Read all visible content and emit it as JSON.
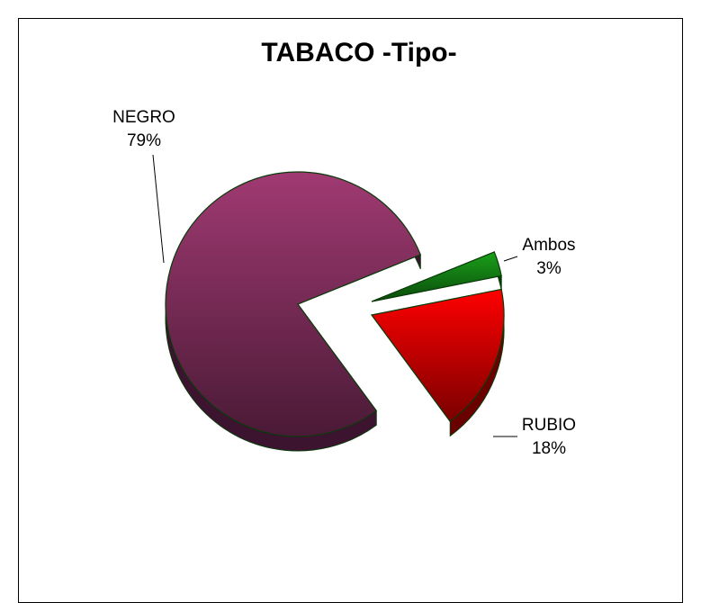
{
  "chart_data": {
    "type": "pie",
    "title": "TABACO -Tipo-",
    "slices": [
      {
        "name": "Ambos",
        "value": 3,
        "label_pct": "3%",
        "color": "#0a7a0a"
      },
      {
        "name": "RUBIO",
        "value": 18,
        "label_pct": "18%",
        "color": "#ff0000"
      },
      {
        "name": "NEGRO",
        "value": 79,
        "label_pct": "79%",
        "color": "#8a3566"
      }
    ],
    "style": "3d-exploded",
    "legend": "none",
    "data_labels": "category-name and percent"
  }
}
